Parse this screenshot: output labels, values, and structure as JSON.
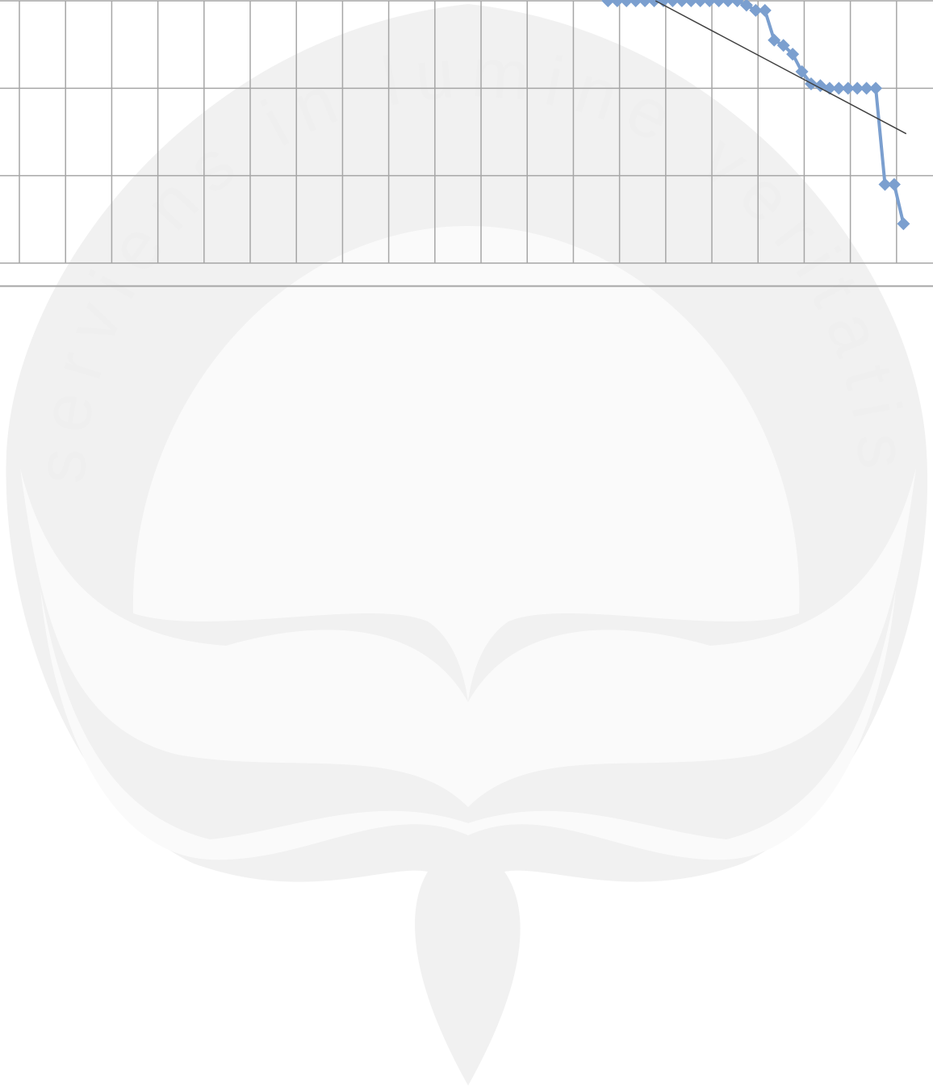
{
  "chart_data": {
    "type": "line",
    "x": [
      12.75,
      12.95,
      13.15,
      13.35,
      13.55,
      13.75,
      13.95,
      14.15,
      14.35,
      14.55,
      14.75,
      14.95,
      15.15,
      15.35,
      15.55,
      15.75,
      15.95,
      16.15,
      16.35,
      16.55,
      16.75,
      16.95,
      17.15,
      17.35,
      17.55,
      17.75,
      17.95,
      18.15,
      18.35,
      18.55,
      18.75,
      18.95,
      19.15
    ],
    "series": [
      {
        "color": "#7b9fcf",
        "values": [
          3.0,
          3.0,
          3.0,
          3.0,
          3.0,
          3.0,
          3.0,
          3.0,
          3.0,
          3.0,
          3.0,
          3.0,
          3.0,
          3.0,
          3.0,
          2.95,
          2.89,
          2.89,
          2.55,
          2.49,
          2.39,
          2.19,
          2.05,
          2.03,
          2.0,
          2.0,
          2.0,
          2.0,
          2.0,
          2.0,
          0.9,
          0.9,
          0.45
        ]
      }
    ],
    "trendline": {
      "color": "#404040",
      "x": [
        13.78,
        19.21
      ],
      "values": [
        3.0,
        1.48
      ]
    },
    "xlim": [
      -0.42,
      19.79
    ],
    "xticks": [
      0,
      1,
      2,
      3,
      4,
      5,
      6,
      7,
      8,
      9,
      10,
      11,
      12,
      13,
      14,
      15,
      16,
      17,
      18,
      19
    ],
    "ylim": [
      0,
      3
    ],
    "yticks": [
      0,
      1,
      2,
      3
    ],
    "grid": true
  },
  "watermark": {
    "text": "serviens in lumine veritatis"
  }
}
